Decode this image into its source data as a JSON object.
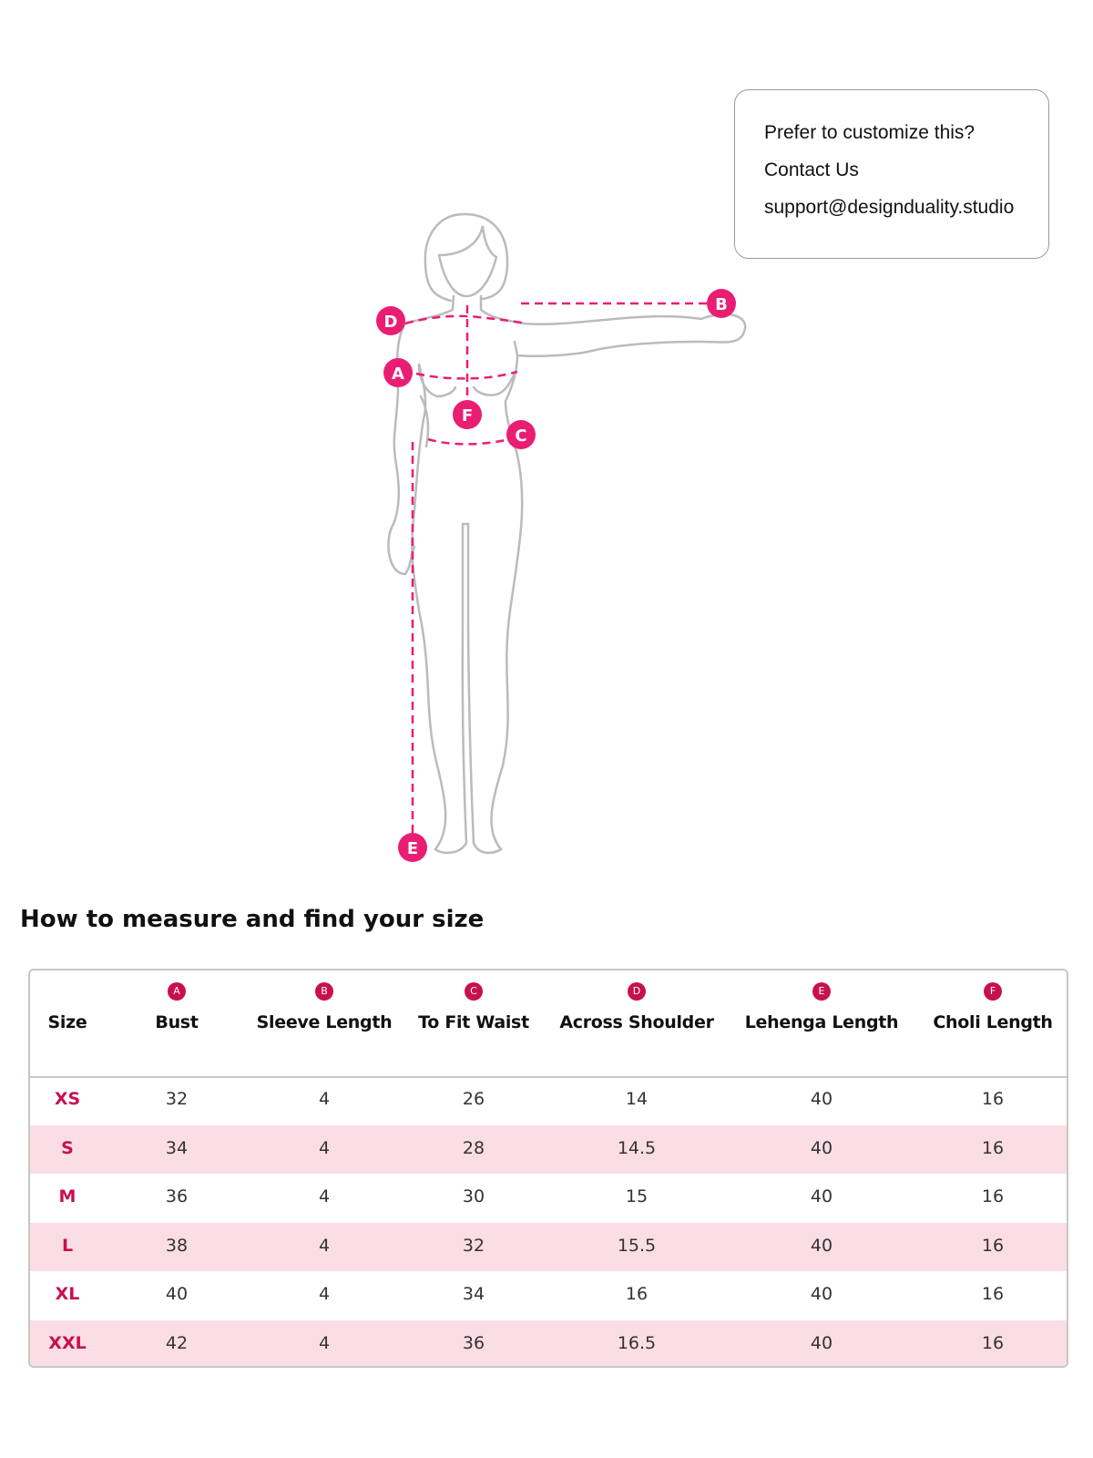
{
  "contact": {
    "line1": "Prefer to customize this?",
    "line2": "Contact Us",
    "email": "support@designduality.studio"
  },
  "figure": {
    "markers": [
      "A",
      "B",
      "C",
      "D",
      "E",
      "F"
    ],
    "accent": "#e91e73",
    "outline": "#bbbbbb"
  },
  "heading": "How to measure and find your size",
  "table": {
    "accent": "#c8104f",
    "stripe": "#fbdde5",
    "columns": [
      {
        "label": "Size",
        "badge": ""
      },
      {
        "label": "Bust",
        "badge": "A"
      },
      {
        "label": "Sleeve Length",
        "badge": "B"
      },
      {
        "label": "To Fit  Waist",
        "badge": "C"
      },
      {
        "label": "Across Shoulder",
        "badge": "D"
      },
      {
        "label": "Lehenga  Length",
        "badge": "E"
      },
      {
        "label": "Choli  Length",
        "badge": "F"
      }
    ],
    "rows": [
      [
        "XS",
        "32",
        "4",
        "26",
        "14",
        "40",
        "16"
      ],
      [
        "S",
        "34",
        "4",
        "28",
        "14.5",
        "40",
        "16"
      ],
      [
        "M",
        "36",
        "4",
        "30",
        "15",
        "40",
        "16"
      ],
      [
        "L",
        "38",
        "4",
        "32",
        "15.5",
        "40",
        "16"
      ],
      [
        "XL",
        "40",
        "4",
        "34",
        "16",
        "40",
        "16"
      ],
      [
        "XXL",
        "42",
        "4",
        "36",
        "16.5",
        "40",
        "16"
      ]
    ]
  }
}
